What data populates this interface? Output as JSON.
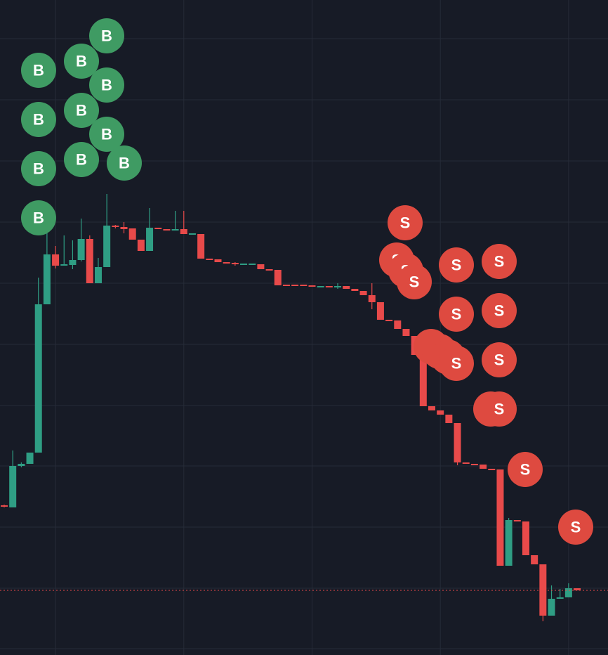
{
  "chart_data": {
    "type": "candlestick",
    "up_color": "#2f9e84",
    "down_color": "#e84a4a",
    "grid": true,
    "ylim": [
      0,
      932
    ],
    "yticks": [
      877,
      790,
      703,
      616,
      529,
      442,
      355,
      269,
      182,
      95,
      9
    ],
    "open": [
      213,
      210,
      269,
      272,
      288,
      499,
      570,
      554,
      555,
      562,
      592,
      529,
      552,
      611,
      609,
      607,
      591,
      575,
      608,
      606,
      604,
      606,
      599,
      599,
      564,
      563,
      559,
      558,
      556,
      556,
      556,
      549,
      548,
      527,
      527,
      527,
      526,
      524,
      525,
      523,
      525,
      521,
      518,
      512,
      502,
      477,
      476,
      464,
      454,
      427,
      354,
      348,
      342,
      330,
      274,
      272,
      271,
      265,
      264,
      127,
      192,
      190,
      142,
      129,
      56,
      80,
      82,
      95
    ],
    "high": [
      214,
      291,
      274,
      288,
      537,
      602,
      582,
      597,
      590,
      621,
      597,
      565,
      656,
      612,
      616,
      607,
      591,
      636,
      608,
      606,
      632,
      632,
      600,
      599,
      564,
      563,
      559,
      559,
      557,
      557,
      556,
      549,
      548,
      527,
      527,
      527,
      526,
      525,
      525,
      529,
      525,
      521,
      518,
      529,
      502,
      477,
      476,
      464,
      454,
      452,
      354,
      348,
      342,
      330,
      274,
      272,
      271,
      265,
      264,
      195,
      192,
      190,
      142,
      129,
      99,
      94,
      102,
      95
    ],
    "low": [
      210,
      210,
      267,
      272,
      288,
      499,
      550,
      554,
      549,
      560,
      529,
      529,
      552,
      607,
      600,
      591,
      575,
      575,
      606,
      604,
      604,
      599,
      599,
      564,
      563,
      559,
      558,
      554,
      556,
      556,
      549,
      548,
      526,
      526,
      526,
      526,
      525,
      524,
      523,
      521,
      521,
      518,
      512,
      492,
      477,
      476,
      464,
      454,
      427,
      354,
      348,
      342,
      330,
      270,
      272,
      271,
      265,
      264,
      127,
      127,
      190,
      142,
      129,
      48,
      56,
      80,
      82,
      92
    ],
    "close": [
      211,
      269,
      272,
      288,
      499,
      570,
      554,
      556,
      562,
      592,
      529,
      552,
      611,
      609,
      606,
      591,
      575,
      608,
      606,
      604,
      606,
      599,
      600,
      564,
      563,
      559,
      558,
      556,
      557,
      557,
      549,
      548,
      526,
      526,
      526,
      526,
      525,
      525,
      523,
      525,
      521,
      518,
      512,
      502,
      477,
      476,
      464,
      454,
      427,
      354,
      348,
      342,
      330,
      274,
      272,
      271,
      265,
      264,
      127,
      192,
      190,
      142,
      129,
      56,
      80,
      82,
      95,
      92
    ],
    "markers": [
      "B",
      "B",
      "B",
      "B",
      "B",
      "B",
      "B",
      "B",
      "B",
      "B",
      "B",
      "S",
      "S",
      "S",
      "S",
      "S",
      "S",
      "S",
      "S",
      "S",
      "S",
      "S",
      "S",
      "S",
      "S",
      "S",
      "S",
      "S"
    ],
    "buy_color": "#3f9b63",
    "sell_color": "#de4a40"
  }
}
